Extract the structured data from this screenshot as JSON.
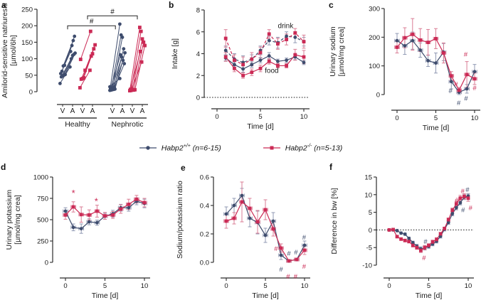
{
  "colors": {
    "wt": "#3e4c6d",
    "ko": "#cb2a55",
    "wt_err": "#9099b3",
    "ko_err": "#da7d95",
    "axis": "#2b2b2b",
    "text": "#1a1a1a"
  },
  "legend": {
    "items": [
      {
        "id": "wt",
        "gene": "Habp2",
        "genotype": "+/+",
        "n_label": "(n=6-15)",
        "marker": "circle",
        "color": "#3e4c6d"
      },
      {
        "id": "ko",
        "gene": "Habp2",
        "genotype": "-/-",
        "n_label": "(n=5-13)",
        "marker": "square",
        "color": "#cb2a55"
      }
    ]
  },
  "chart_data": [
    {
      "panel": "a",
      "type": "paired",
      "ylabel_lines": [
        "Amilorid-sensitive natriuresis",
        "[µmol/6h]"
      ],
      "ylim": [
        0,
        250
      ],
      "ytick_vals": [
        0,
        50,
        100,
        150,
        200,
        250
      ],
      "ytick_labels": [
        "0",
        "50",
        "100",
        "150",
        "200",
        "250"
      ],
      "slot_labels": [
        "V",
        "A",
        "V",
        "A",
        "V",
        "A",
        "V",
        "A"
      ],
      "group_labels": [
        "Healthy",
        "Nephrotic"
      ],
      "series": [
        {
          "group": "Healthy",
          "genotype": "wt",
          "marker": "circle",
          "pairs": [
            [
              25,
              75
            ],
            [
              45,
              100
            ],
            [
              48,
              110
            ],
            [
              50,
              113
            ],
            [
              52,
              117
            ],
            [
              55,
              122
            ],
            [
              62,
              140
            ],
            [
              78,
              155
            ],
            [
              80,
              168
            ]
          ]
        },
        {
          "group": "Healthy",
          "genotype": "ko",
          "marker": "square",
          "pairs": [
            [
              12,
              65
            ],
            [
              38,
              108
            ],
            [
              40,
              115
            ],
            [
              42,
              130
            ],
            [
              65,
              142
            ],
            [
              98,
              183
            ]
          ]
        },
        {
          "group": "Nephrotic",
          "genotype": "wt",
          "marker": "circle",
          "pairs": [
            [
              4,
              205
            ],
            [
              5,
              172
            ],
            [
              6,
              165
            ],
            [
              7,
              130
            ],
            [
              8,
              118
            ],
            [
              9,
              112
            ],
            [
              10,
              105
            ],
            [
              11,
              95
            ],
            [
              12,
              85
            ],
            [
              15,
              40
            ]
          ]
        },
        {
          "group": "Nephrotic",
          "genotype": "ko",
          "marker": "square",
          "pairs": [
            [
              3,
              195
            ],
            [
              4,
              183
            ],
            [
              5,
              160
            ],
            [
              5,
              150
            ],
            [
              6,
              140
            ],
            [
              7,
              122
            ],
            [
              8,
              90
            ]
          ]
        }
      ],
      "brackets": [
        {
          "x1_slot": 1.5,
          "x2_slot": 5.9,
          "y": 200,
          "label": "#"
        },
        {
          "x1_slot": 3.5,
          "x2_slot": 8.1,
          "y": 230,
          "label": "#"
        }
      ]
    },
    {
      "panel": "b",
      "type": "line",
      "ylabel_lines": [
        "Intake [g]"
      ],
      "xlabel": "Time [d]",
      "ylim": [
        0,
        8
      ],
      "ytick_vals": [
        0,
        2,
        4,
        6,
        8
      ],
      "ytick_labels": [
        "0",
        "2",
        "4",
        "6",
        "8"
      ],
      "xticks": [
        0,
        5,
        10
      ],
      "zero_dotted": true,
      "x": [
        1,
        2,
        3,
        4,
        5,
        6,
        7,
        8,
        9,
        10
      ],
      "series": [
        {
          "name": "drink Habp2+/+",
          "genotype": "wt",
          "dash": true,
          "y": [
            4.3,
            3.5,
            3.2,
            3.5,
            4.3,
            5.2,
            5.0,
            5.6,
            5.5,
            5.1
          ],
          "err": [
            0.4,
            0.5,
            0.6,
            0.4,
            0.4,
            0.4,
            0.5,
            0.4,
            0.5,
            0.4
          ]
        },
        {
          "name": "drink Habp2-/-",
          "genotype": "ko",
          "dash": true,
          "y": [
            5.4,
            3.4,
            3.0,
            3.5,
            4.1,
            5.8,
            4.9,
            5.3,
            5.9,
            5.1
          ],
          "err": [
            0.8,
            0.5,
            0.7,
            0.6,
            0.5,
            0.4,
            0.5,
            0.5,
            0.4,
            0.6
          ]
        },
        {
          "name": "food Habp2+/+",
          "genotype": "wt",
          "y": [
            3.6,
            3.0,
            2.6,
            3.0,
            3.4,
            3.8,
            3.3,
            3.4,
            3.7,
            3.2
          ],
          "err": [
            0.25,
            0.25,
            0.3,
            0.25,
            0.25,
            0.3,
            0.2,
            0.2,
            0.25,
            0.2
          ]
        },
        {
          "name": "food Habp2-/-",
          "genotype": "ko",
          "y": [
            3.7,
            2.65,
            2.0,
            2.3,
            2.65,
            3.3,
            2.9,
            2.9,
            3.9,
            3.7
          ],
          "err": [
            0.4,
            0.3,
            0.25,
            0.3,
            0.3,
            0.25,
            0.2,
            0.2,
            0.5,
            0.6
          ]
        }
      ],
      "annotations": [
        {
          "text": "drink",
          "x": 7.9,
          "y": 6.55,
          "color": "text",
          "size": 10
        },
        {
          "text": "food",
          "x": 6.3,
          "y": 2.45,
          "color": "text",
          "size": 10
        }
      ]
    },
    {
      "panel": "c",
      "type": "line",
      "ylabel_lines": [
        "Urinary sodium",
        "[µmol/mg crea]"
      ],
      "xlabel": "Time [d]",
      "ylim": [
        0,
        300
      ],
      "ytick_vals": [
        0,
        100,
        200,
        300
      ],
      "ytick_labels": [
        "0",
        "100",
        "200",
        "300"
      ],
      "xticks": [
        0,
        5,
        10
      ],
      "xerr": 0.3,
      "x": [
        0,
        1,
        2,
        3,
        4,
        5,
        6,
        7,
        8,
        9,
        10
      ],
      "series": [
        {
          "name": "Habp2+/+",
          "genotype": "wt",
          "y": [
            188,
            170,
            188,
            155,
            118,
            110,
            148,
            45,
            8,
            20,
            80
          ],
          "err": [
            25,
            30,
            30,
            25,
            20,
            35,
            30,
            25,
            8,
            15,
            25
          ]
        },
        {
          "name": "Habp2-/-",
          "genotype": "ko",
          "y": [
            165,
            198,
            210,
            190,
            182,
            195,
            145,
            65,
            15,
            70,
            55
          ],
          "err": [
            20,
            35,
            55,
            40,
            45,
            35,
            35,
            15,
            10,
            45,
            20
          ]
        }
      ],
      "annotations": [
        {
          "text": "#",
          "x": 6.9,
          "y": 12,
          "color": "wt"
        },
        {
          "text": "#",
          "x": 7.6,
          "y": 36,
          "color": "ko"
        },
        {
          "text": "#",
          "x": 7.95,
          "y": -30,
          "color": "wt"
        },
        {
          "text": "#",
          "x": 8.85,
          "y": 140,
          "color": "ko"
        },
        {
          "text": "#",
          "x": 8.9,
          "y": -14,
          "color": "wt"
        },
        {
          "text": "#",
          "x": 10.0,
          "y": 22,
          "color": "ko"
        }
      ]
    },
    {
      "panel": "d",
      "type": "line",
      "ylabel_lines": [
        "Urinary potassium",
        "[µmol/mg crea]"
      ],
      "xlabel": "Time [d]",
      "ylim": [
        0,
        1000
      ],
      "ytick_vals": [
        0,
        250,
        500,
        750,
        1000
      ],
      "ytick_labels": [
        "0",
        "250",
        "500",
        "750",
        "1000"
      ],
      "xticks": [
        0,
        5,
        10
      ],
      "xerr": 0.3,
      "x": [
        0,
        1,
        2,
        3,
        4,
        5,
        6,
        7,
        8,
        9,
        10
      ],
      "series": [
        {
          "name": "Habp2+/+",
          "genotype": "wt",
          "y": [
            600,
            410,
            395,
            475,
            465,
            540,
            570,
            640,
            640,
            715,
            690
          ],
          "err": [
            40,
            40,
            55,
            35,
            30,
            35,
            40,
            40,
            40,
            40,
            50
          ]
        },
        {
          "name": "Habp2-/-",
          "genotype": "ko",
          "y": [
            555,
            650,
            560,
            555,
            600,
            545,
            555,
            625,
            680,
            740,
            700
          ],
          "err": [
            50,
            60,
            90,
            60,
            70,
            40,
            40,
            50,
            60,
            45,
            50
          ]
        }
      ],
      "annotations": [
        {
          "text": "*",
          "x": 1.0,
          "y": 800,
          "color": "ko",
          "size": 13
        },
        {
          "text": "*",
          "x": 3.9,
          "y": 705,
          "color": "ko",
          "size": 13
        }
      ]
    },
    {
      "panel": "e",
      "type": "line",
      "ylabel_lines": [
        "Sodium/potassium ratio"
      ],
      "xlabel": "Time [d]",
      "ylim": [
        0,
        0.6
      ],
      "ytick_vals": [
        0,
        0.2,
        0.4,
        0.6
      ],
      "ytick_labels": [
        "0.0",
        "0.2",
        "0.4",
        "0.6"
      ],
      "xticks": [
        0,
        5,
        10
      ],
      "xerr": 0.3,
      "x": [
        0,
        1,
        2,
        3,
        4,
        5,
        6,
        7,
        8,
        9,
        10
      ],
      "series": [
        {
          "name": "Habp2+/+",
          "genotype": "wt",
          "y": [
            0.34,
            0.4,
            0.47,
            0.31,
            0.28,
            0.19,
            0.29,
            0.05,
            0.01,
            0.02,
            0.12
          ],
          "err": [
            0.05,
            0.05,
            0.05,
            0.06,
            0.08,
            0.05,
            0.06,
            0.03,
            0.008,
            0.01,
            0.03
          ]
        },
        {
          "name": "Habp2-/-",
          "genotype": "ko",
          "y": [
            0.29,
            0.31,
            0.425,
            0.38,
            0.285,
            0.37,
            0.235,
            0.1,
            0.01,
            0.02,
            0.085
          ],
          "err": [
            0.05,
            0.04,
            0.14,
            0.07,
            0.08,
            0.07,
            0.05,
            0.03,
            0.008,
            0.01,
            0.03
          ]
        }
      ],
      "annotations": [
        {
          "text": "#",
          "x": 6.35,
          "y": 0.095,
          "color": "ko"
        },
        {
          "text": "#",
          "x": 7.0,
          "y": -0.05,
          "color": "wt"
        },
        {
          "text": "#",
          "x": 8.0,
          "y": 0.062,
          "color": "wt"
        },
        {
          "text": "#",
          "x": 7.9,
          "y": -0.1,
          "color": "ko"
        },
        {
          "text": "#",
          "x": 8.9,
          "y": 0.07,
          "color": "wt"
        },
        {
          "text": "#",
          "x": 8.85,
          "y": -0.1,
          "color": "ko"
        },
        {
          "text": "#",
          "x": 9.95,
          "y": 0.175,
          "color": "wt"
        },
        {
          "text": "#",
          "x": 9.95,
          "y": -0.03,
          "color": "ko"
        }
      ]
    },
    {
      "panel": "f",
      "type": "line",
      "ylabel_lines": [
        "Difference in bw [%]"
      ],
      "xlabel": "Time [d]",
      "ylim": [
        -10,
        15
      ],
      "ytick_vals": [
        -10,
        -5,
        0,
        5,
        10,
        15
      ],
      "ytick_labels": [
        "-10",
        "-5",
        "0",
        "5",
        "10",
        "15"
      ],
      "xticks": [
        0,
        5,
        10
      ],
      "xerr": 0.12,
      "zero_dotted": true,
      "x": [
        0,
        0.5,
        1,
        1.5,
        2,
        2.5,
        3,
        3.5,
        4,
        4.5,
        5,
        5.5,
        6,
        6.5,
        7,
        7.5,
        8,
        8.5,
        9,
        9.5,
        10
      ],
      "series": [
        {
          "name": "Habp2+/+",
          "genotype": "wt",
          "y": [
            0,
            0,
            -0.2,
            -0.9,
            -1.2,
            -2.4,
            -3.6,
            -4.6,
            -5.4,
            -5.1,
            -4.7,
            -4.0,
            -3.2,
            -1.8,
            0.2,
            2.1,
            4.6,
            6.3,
            7.7,
            9.3,
            9.6
          ],
          "err": [
            0.1,
            0.1,
            0.15,
            0.2,
            0.25,
            0.3,
            0.4,
            0.5,
            0.6,
            0.6,
            0.5,
            0.5,
            0.5,
            0.5,
            0.5,
            0.5,
            0.6,
            0.6,
            0.6,
            0.7,
            0.7
          ]
        },
        {
          "name": "Habp2-/-",
          "genotype": "ko",
          "y": [
            0,
            0.1,
            -1.9,
            -2.6,
            -3.0,
            -3.3,
            -4.4,
            -5.0,
            -5.8,
            -5.0,
            -4.4,
            -3.4,
            -2.7,
            -1.1,
            0.4,
            2.9,
            5.6,
            7.4,
            9.0,
            9.5,
            9.0
          ],
          "err": [
            0.1,
            0.15,
            0.2,
            0.25,
            0.3,
            0.3,
            0.4,
            0.5,
            0.6,
            0.6,
            0.5,
            0.5,
            0.5,
            0.4,
            0.4,
            0.5,
            0.6,
            0.7,
            0.8,
            0.8,
            0.9
          ]
        }
      ],
      "annotations": [
        {
          "text": "#",
          "x": 4.6,
          "y": -3.3,
          "color": "wt"
        },
        {
          "text": "#",
          "x": 4.4,
          "y": -8.0,
          "color": "ko"
        },
        {
          "text": "#",
          "x": 8.55,
          "y": 8.4,
          "color": "ko"
        },
        {
          "text": "#",
          "x": 9.3,
          "y": 11.0,
          "color": "ko"
        },
        {
          "text": "#",
          "x": 9.9,
          "y": 11.4,
          "color": "wt"
        },
        {
          "text": "#",
          "x": 9.35,
          "y": 5.6,
          "color": "wt"
        },
        {
          "text": "#",
          "x": 10.3,
          "y": 6.2,
          "color": "ko"
        }
      ]
    }
  ]
}
